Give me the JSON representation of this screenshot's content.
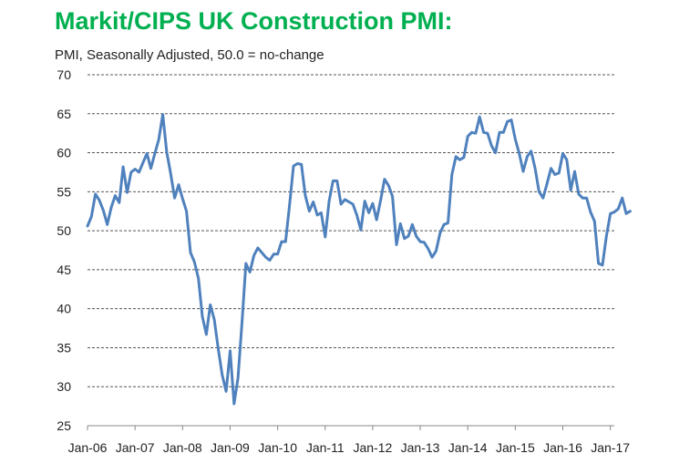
{
  "chart_data": {
    "type": "line",
    "title": "Markit/CIPS UK Construction PMI:",
    "subtitle": "PMI, Seasonally Adjusted, 50.0 = no-change",
    "xlabel": "",
    "ylabel": "",
    "ylim": [
      25,
      70
    ],
    "yticks": [
      25,
      30,
      35,
      40,
      45,
      50,
      55,
      60,
      65,
      70
    ],
    "xlim": [
      "2006-01",
      "2017-02"
    ],
    "xticks": [
      "Jan-06",
      "Jan-07",
      "Jan-08",
      "Jan-09",
      "Jan-10",
      "Jan-11",
      "Jan-12",
      "Jan-13",
      "Jan-14",
      "Jan-15",
      "Jan-16",
      "Jan-17"
    ],
    "grid": "horizontal dashed",
    "line_color": "#4f81bd",
    "series": [
      {
        "x_start": "2006-01",
        "frequency": "monthly",
        "values": [
          50.6,
          51.8,
          54.7,
          53.9,
          52.6,
          50.8,
          53.0,
          54.5,
          53.6,
          58.2,
          54.9,
          57.5,
          57.9,
          57.5,
          58.7,
          59.9,
          58.0,
          59.9,
          61.7,
          64.9,
          60.1,
          57.3,
          54.2,
          55.9,
          54.1,
          52.5,
          47.2,
          46.0,
          43.9,
          39.0,
          36.7,
          40.5,
          38.6,
          34.9,
          31.5,
          29.4,
          34.6,
          27.8,
          31.1,
          38.2,
          45.8,
          44.7,
          46.8,
          47.8,
          47.2,
          46.6,
          46.2,
          47.0,
          47.0,
          48.6,
          48.6,
          53.2,
          58.3,
          58.6,
          58.5,
          54.5,
          52.5,
          53.7,
          52.0,
          52.3,
          49.2,
          53.8,
          56.4,
          56.4,
          53.4,
          54.0,
          53.7,
          53.4,
          52.0,
          50.1,
          53.8,
          52.3,
          53.5,
          51.4,
          53.9,
          56.6,
          55.8,
          54.4,
          48.2,
          50.9,
          49.0,
          49.3,
          50.8,
          49.3,
          48.6,
          48.5,
          47.7,
          46.6,
          47.4,
          49.7,
          50.8,
          51.0,
          57.2,
          59.5,
          59.1,
          59.4,
          62.1,
          62.6,
          62.5,
          64.6,
          62.6,
          62.5,
          60.9,
          60.0,
          62.6,
          62.6,
          64.0,
          64.2,
          61.7,
          59.9,
          57.6,
          59.5,
          60.2,
          58.0,
          55.0,
          54.2,
          56.0,
          58.0,
          57.2,
          57.4,
          59.9,
          59.1,
          55.2,
          57.6,
          54.7,
          54.2,
          54.2,
          52.4,
          51.2,
          45.8,
          45.6,
          49.3,
          52.2,
          52.4,
          52.8,
          54.2,
          52.2,
          52.5
        ]
      }
    ]
  }
}
